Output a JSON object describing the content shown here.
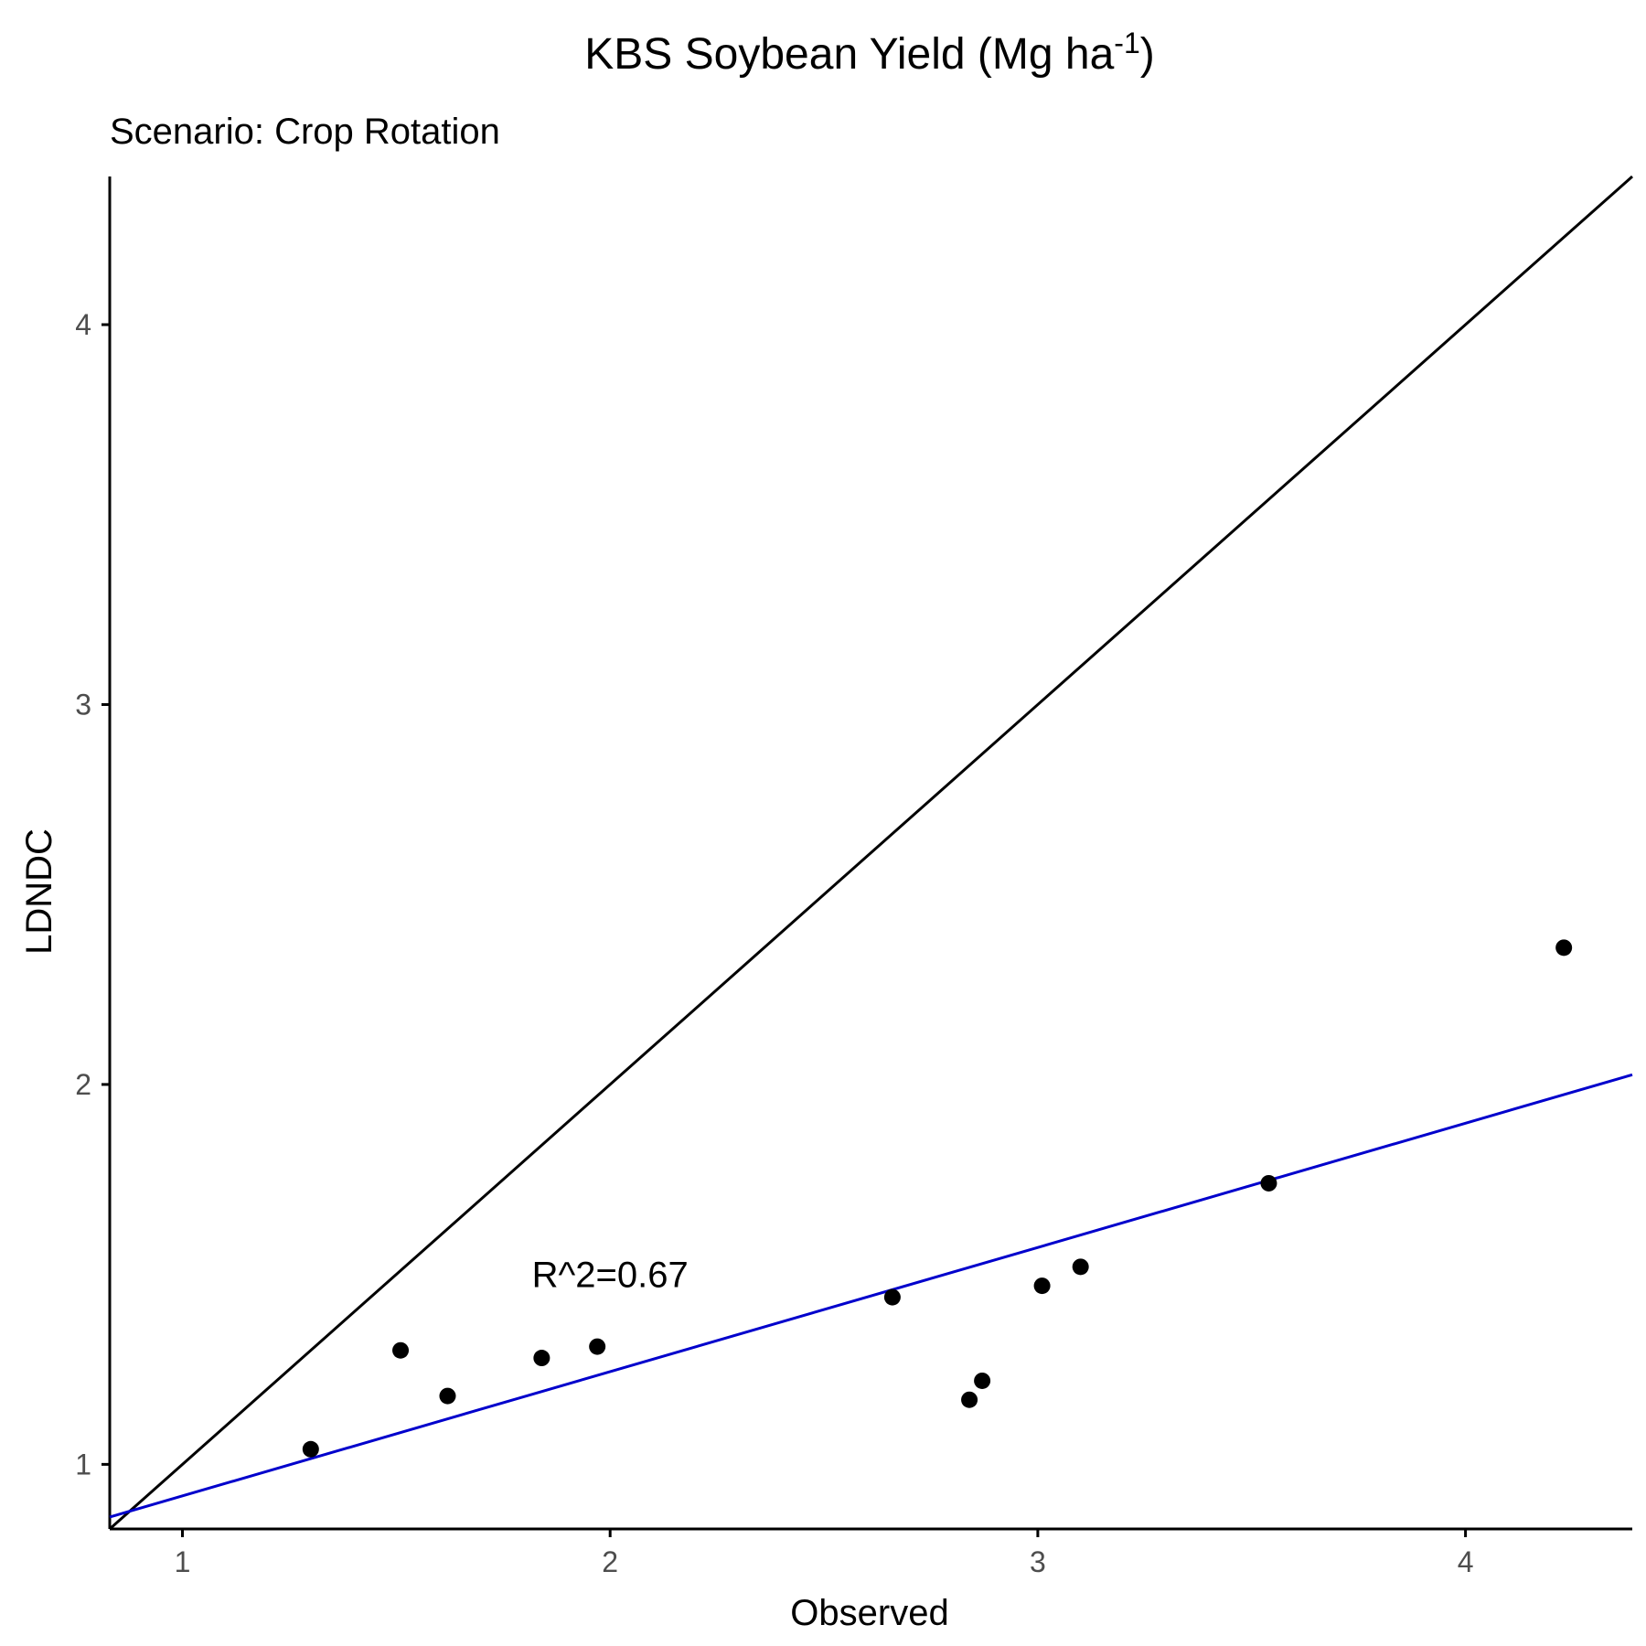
{
  "chart_data": {
    "type": "scatter",
    "title": "KBS Soybean Yield (Mg ha",
    "title_superscript": "-1",
    "title_suffix": ")",
    "subtitle": "Scenario: Crop Rotation",
    "xlabel": "Observed",
    "ylabel": "LDNDC",
    "xlim": [
      0.83,
      4.39
    ],
    "ylim": [
      0.83,
      4.39
    ],
    "x_ticks": [
      1,
      2,
      3,
      4
    ],
    "y_ticks": [
      1,
      2,
      3,
      4
    ],
    "grid": false,
    "series": [
      {
        "color": "#000000",
        "points": [
          {
            "x": 1.3,
            "y": 1.04
          },
          {
            "x": 1.51,
            "y": 1.3
          },
          {
            "x": 1.62,
            "y": 1.18
          },
          {
            "x": 1.84,
            "y": 1.28
          },
          {
            "x": 1.97,
            "y": 1.31
          },
          {
            "x": 2.66,
            "y": 1.44
          },
          {
            "x": 2.84,
            "y": 1.17
          },
          {
            "x": 2.87,
            "y": 1.22
          },
          {
            "x": 3.01,
            "y": 1.47
          },
          {
            "x": 3.1,
            "y": 1.52
          },
          {
            "x": 3.54,
            "y": 1.74
          },
          {
            "x": 4.23,
            "y": 2.36
          }
        ]
      }
    ],
    "reference_lines": [
      {
        "type": "identity",
        "color": "#000000",
        "slope": 1,
        "intercept": 0
      },
      {
        "type": "regression",
        "color": "#0000CC",
        "slope": 0.327,
        "intercept": 0.59
      }
    ],
    "annotations": [
      {
        "text": "R^2=0.67",
        "x": 2.0,
        "y": 1.5
      }
    ]
  }
}
